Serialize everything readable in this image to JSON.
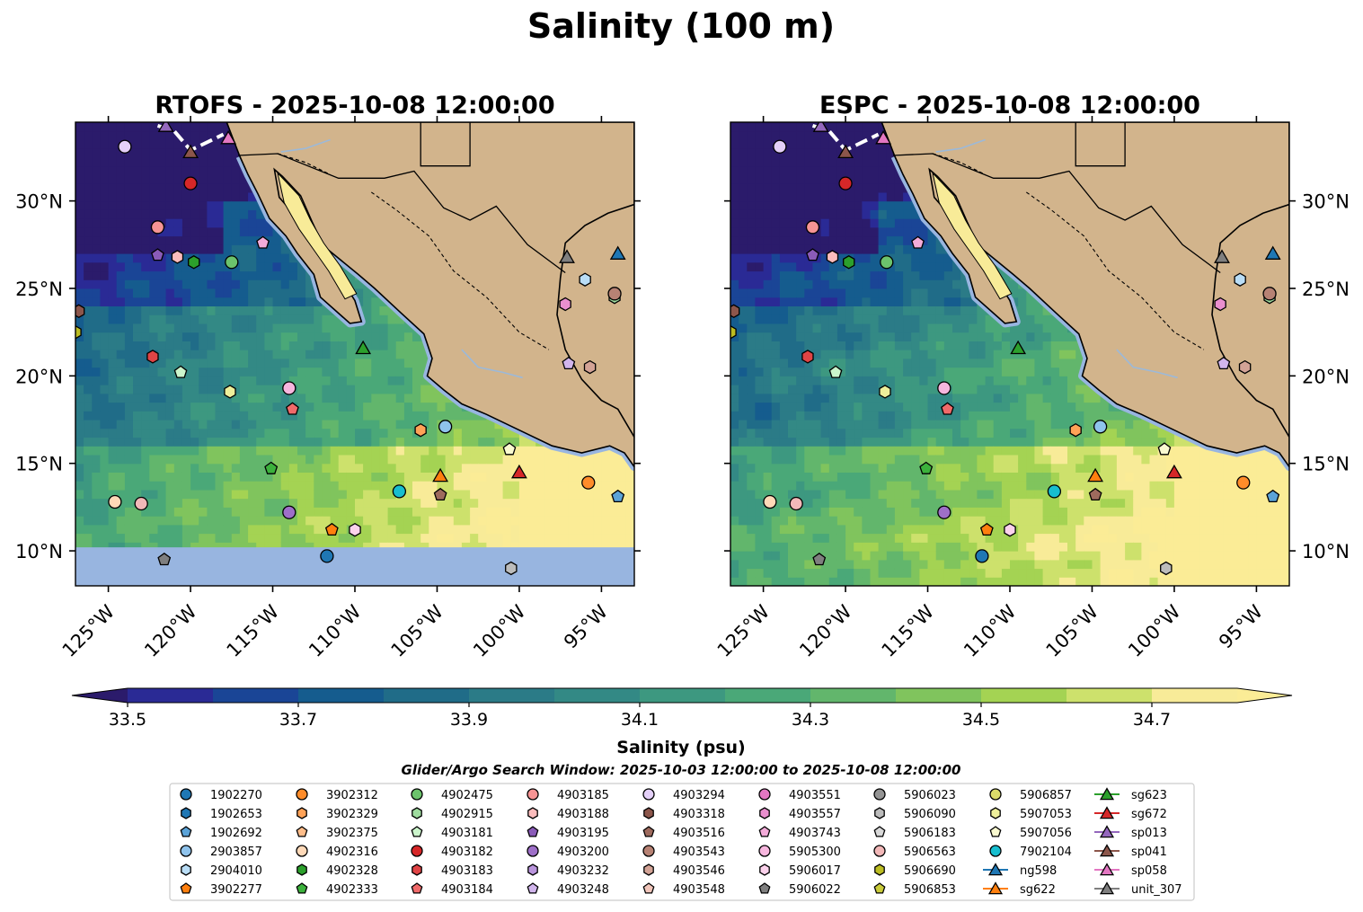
{
  "figure": {
    "suptitle": "Salinity (100 m)"
  },
  "chart_data": {
    "type": "contour-map",
    "panels": [
      {
        "title": "RTOFS - 2025-10-08 12:00:00",
        "y_labels": "left"
      },
      {
        "title": "ESPC - 2025-10-08 12:00:00",
        "y_labels": "right"
      }
    ],
    "lon_range": [
      -127,
      -93
    ],
    "lat_range": [
      8,
      34.5
    ],
    "x_ticks": [
      {
        "lon": -125,
        "label": "125°W"
      },
      {
        "lon": -120,
        "label": "120°W"
      },
      {
        "lon": -115,
        "label": "115°W"
      },
      {
        "lon": -110,
        "label": "110°W"
      },
      {
        "lon": -105,
        "label": "105°W"
      },
      {
        "lon": -100,
        "label": "100°W"
      },
      {
        "lon": -95,
        "label": "95°W"
      }
    ],
    "y_ticks": [
      {
        "lat": 30,
        "label": "30°N"
      },
      {
        "lat": 25,
        "label": "25°N"
      },
      {
        "lat": 20,
        "label": "20°N"
      },
      {
        "lat": 15,
        "label": "15°N"
      },
      {
        "lat": 10,
        "label": "10°N"
      }
    ],
    "colorbar": {
      "label": "Salinity (psu)",
      "min": 33.5,
      "max": 34.8,
      "step": 0.1,
      "extend": "both",
      "ticks": [
        {
          "value": 33.5,
          "label": "33.5"
        },
        {
          "value": 33.7,
          "label": "33.7"
        },
        {
          "value": 33.9,
          "label": "33.9"
        },
        {
          "value": 34.1,
          "label": "34.1"
        },
        {
          "value": 34.3,
          "label": "34.3"
        },
        {
          "value": 34.5,
          "label": "34.5"
        },
        {
          "value": 34.7,
          "label": "34.7"
        }
      ],
      "colors": [
        "#2b1b6b",
        "#2a2a95",
        "#1a4596",
        "#155c8e",
        "#206c88",
        "#2b7b87",
        "#338985",
        "#3d9880",
        "#4aa878",
        "#62b66c",
        "#80c45d",
        "#a4d353",
        "#cde16c",
        "#f8eb98",
        "#fbec96"
      ]
    },
    "map_colors": {
      "land": "#d2b48c",
      "shelf": "#98b5e0",
      "river": "#9cb9d9"
    },
    "search_window": "Glider/Argo Search Window: 2025-10-03 12:00:00 to 2025-10-08 12:00:00",
    "argo_floats": [
      {
        "id": "1902270",
        "marker": "circle",
        "color": "#1f77b4",
        "lon": -111.7,
        "lat": 9.7
      },
      {
        "id": "1902653",
        "marker": "hexagon",
        "color": "#1f77b4",
        "lon": null,
        "lat": null
      },
      {
        "id": "1902692",
        "marker": "pentagon",
        "color": "#5ba3d8",
        "lon": -94.0,
        "lat": 13.1
      },
      {
        "id": "2903857",
        "marker": "circle",
        "color": "#8fc3ec",
        "lon": -104.5,
        "lat": 17.1
      },
      {
        "id": "2904010",
        "marker": "hexagon",
        "color": "#b9ddf6",
        "lon": -96.0,
        "lat": 25.5
      },
      {
        "id": "3902277",
        "marker": "pentagon",
        "color": "#ff7f0e",
        "lon": -111.4,
        "lat": 11.2
      },
      {
        "id": "3902312",
        "marker": "circle",
        "color": "#ff8c2a",
        "lon": -95.8,
        "lat": 13.9
      },
      {
        "id": "3902329",
        "marker": "hexagon",
        "color": "#ffa257",
        "lon": -106.0,
        "lat": 16.9
      },
      {
        "id": "3902375",
        "marker": "pentagon",
        "color": "#ffbd8a",
        "lon": null,
        "lat": null
      },
      {
        "id": "4902316",
        "marker": "circle",
        "color": "#ffd9b8",
        "lon": -124.6,
        "lat": 12.8
      },
      {
        "id": "4902328",
        "marker": "hexagon",
        "color": "#2ca02c",
        "lon": -119.8,
        "lat": 26.5
      },
      {
        "id": "4902333",
        "marker": "pentagon",
        "color": "#3cb13c",
        "lon": -115.1,
        "lat": 14.7
      },
      {
        "id": "4902475",
        "marker": "circle",
        "color": "#6cc36c",
        "lon": -117.5,
        "lat": 26.5
      },
      {
        "id": "4902915",
        "marker": "hexagon",
        "color": "#9fdc9f",
        "lon": -94.2,
        "lat": 24.5
      },
      {
        "id": "4903181",
        "marker": "pentagon",
        "color": "#ccf5cc",
        "lon": -120.6,
        "lat": 20.2
      },
      {
        "id": "4903182",
        "marker": "circle",
        "color": "#d62728",
        "lon": -120.0,
        "lat": 31.0
      },
      {
        "id": "4903183",
        "marker": "hexagon",
        "color": "#e04445",
        "lon": -122.3,
        "lat": 21.1
      },
      {
        "id": "4903184",
        "marker": "pentagon",
        "color": "#f06a6a",
        "lon": -113.8,
        "lat": 18.1
      },
      {
        "id": "4903185",
        "marker": "circle",
        "color": "#f79494",
        "lon": -122.0,
        "lat": 28.5
      },
      {
        "id": "4903188",
        "marker": "hexagon",
        "color": "#fbbcbc",
        "lon": -120.8,
        "lat": 26.8
      },
      {
        "id": "4903195",
        "marker": "pentagon",
        "color": "#8a5bb8",
        "lon": -122.0,
        "lat": 26.9
      },
      {
        "id": "4903200",
        "marker": "circle",
        "color": "#9e6fc8",
        "lon": -114.0,
        "lat": 12.2
      },
      {
        "id": "4903232",
        "marker": "hexagon",
        "color": "#b994dc",
        "lon": null,
        "lat": null
      },
      {
        "id": "4903248",
        "marker": "pentagon",
        "color": "#d1b5ec",
        "lon": -97.0,
        "lat": 20.7
      },
      {
        "id": "4903294",
        "marker": "circle",
        "color": "#e4d0f8",
        "lon": -124.0,
        "lat": 33.1
      },
      {
        "id": "4903318",
        "marker": "hexagon",
        "color": "#8c564b",
        "lon": -126.8,
        "lat": 23.7
      },
      {
        "id": "4903516",
        "marker": "pentagon",
        "color": "#9e6a5d",
        "lon": -104.8,
        "lat": 13.2
      },
      {
        "id": "4903543",
        "marker": "circle",
        "color": "#b78274",
        "lon": -94.2,
        "lat": 24.7
      },
      {
        "id": "4903546",
        "marker": "hexagon",
        "color": "#d3a396",
        "lon": -95.7,
        "lat": 20.5
      },
      {
        "id": "4903548",
        "marker": "pentagon",
        "color": "#f2c6bb",
        "lon": null,
        "lat": null
      },
      {
        "id": "4903551",
        "marker": "circle",
        "color": "#e377c2",
        "lon": null,
        "lat": null
      },
      {
        "id": "4903557",
        "marker": "hexagon",
        "color": "#e98fce",
        "lon": -97.2,
        "lat": 24.1
      },
      {
        "id": "4903743",
        "marker": "pentagon",
        "color": "#f3abd9",
        "lon": -115.6,
        "lat": 27.6
      },
      {
        "id": "5905300",
        "marker": "circle",
        "color": "#f7b6de",
        "lon": -114.0,
        "lat": 19.3
      },
      {
        "id": "5906017",
        "marker": "hexagon",
        "color": "#fcd2ec",
        "lon": -110.0,
        "lat": 11.2
      },
      {
        "id": "5906022",
        "marker": "pentagon",
        "color": "#7f7f7f",
        "lon": -121.6,
        "lat": 9.5
      },
      {
        "id": "5906023",
        "marker": "circle",
        "color": "#949494",
        "lon": null,
        "lat": null
      },
      {
        "id": "5906090",
        "marker": "hexagon",
        "color": "#bcbcbc",
        "lon": -100.5,
        "lat": 9.0
      },
      {
        "id": "5906183",
        "marker": "pentagon",
        "color": "#d9d9d9",
        "lon": null,
        "lat": null
      },
      {
        "id": "5906563",
        "marker": "circle",
        "color": "#f2b8b8",
        "lon": -123.0,
        "lat": 12.7
      },
      {
        "id": "5906690",
        "marker": "hexagon",
        "color": "#bcbd22",
        "lon": -127.0,
        "lat": 22.5
      },
      {
        "id": "5906853",
        "marker": "pentagon",
        "color": "#c9cb3a",
        "lon": null,
        "lat": null
      },
      {
        "id": "5906857",
        "marker": "circle",
        "color": "#dbdc6a",
        "lon": null,
        "lat": null
      },
      {
        "id": "5907053",
        "marker": "hexagon",
        "color": "#eeef9b",
        "lon": -117.6,
        "lat": 19.1
      },
      {
        "id": "5907056",
        "marker": "pentagon",
        "color": "#fafad0",
        "lon": -100.6,
        "lat": 15.8
      },
      {
        "id": "7902104",
        "marker": "circle",
        "color": "#17becf",
        "lon": -107.3,
        "lat": 13.4
      }
    ],
    "gliders": [
      {
        "id": "ng598",
        "color": "#1f77b4",
        "lon": -94.0,
        "lat": 27.0
      },
      {
        "id": "sg622",
        "color": "#ff7f0e",
        "lon": -104.8,
        "lat": 14.3
      },
      {
        "id": "sg623",
        "color": "#2ca02c",
        "lon": -109.5,
        "lat": 21.6
      },
      {
        "id": "sg672",
        "color": "#d62728",
        "lon": -100.0,
        "lat": 14.5
      },
      {
        "id": "sp013",
        "color": "#9467bd",
        "lon": -121.5,
        "lat": 34.3
      },
      {
        "id": "sp041",
        "color": "#8c564b",
        "lon": -120.0,
        "lat": 32.8
      },
      {
        "id": "sp058",
        "color": "#e377c2",
        "lon": -117.7,
        "lat": 33.6
      },
      {
        "id": "unit_307",
        "color": "#7f7f7f",
        "lon": -97.1,
        "lat": 26.8
      }
    ]
  }
}
